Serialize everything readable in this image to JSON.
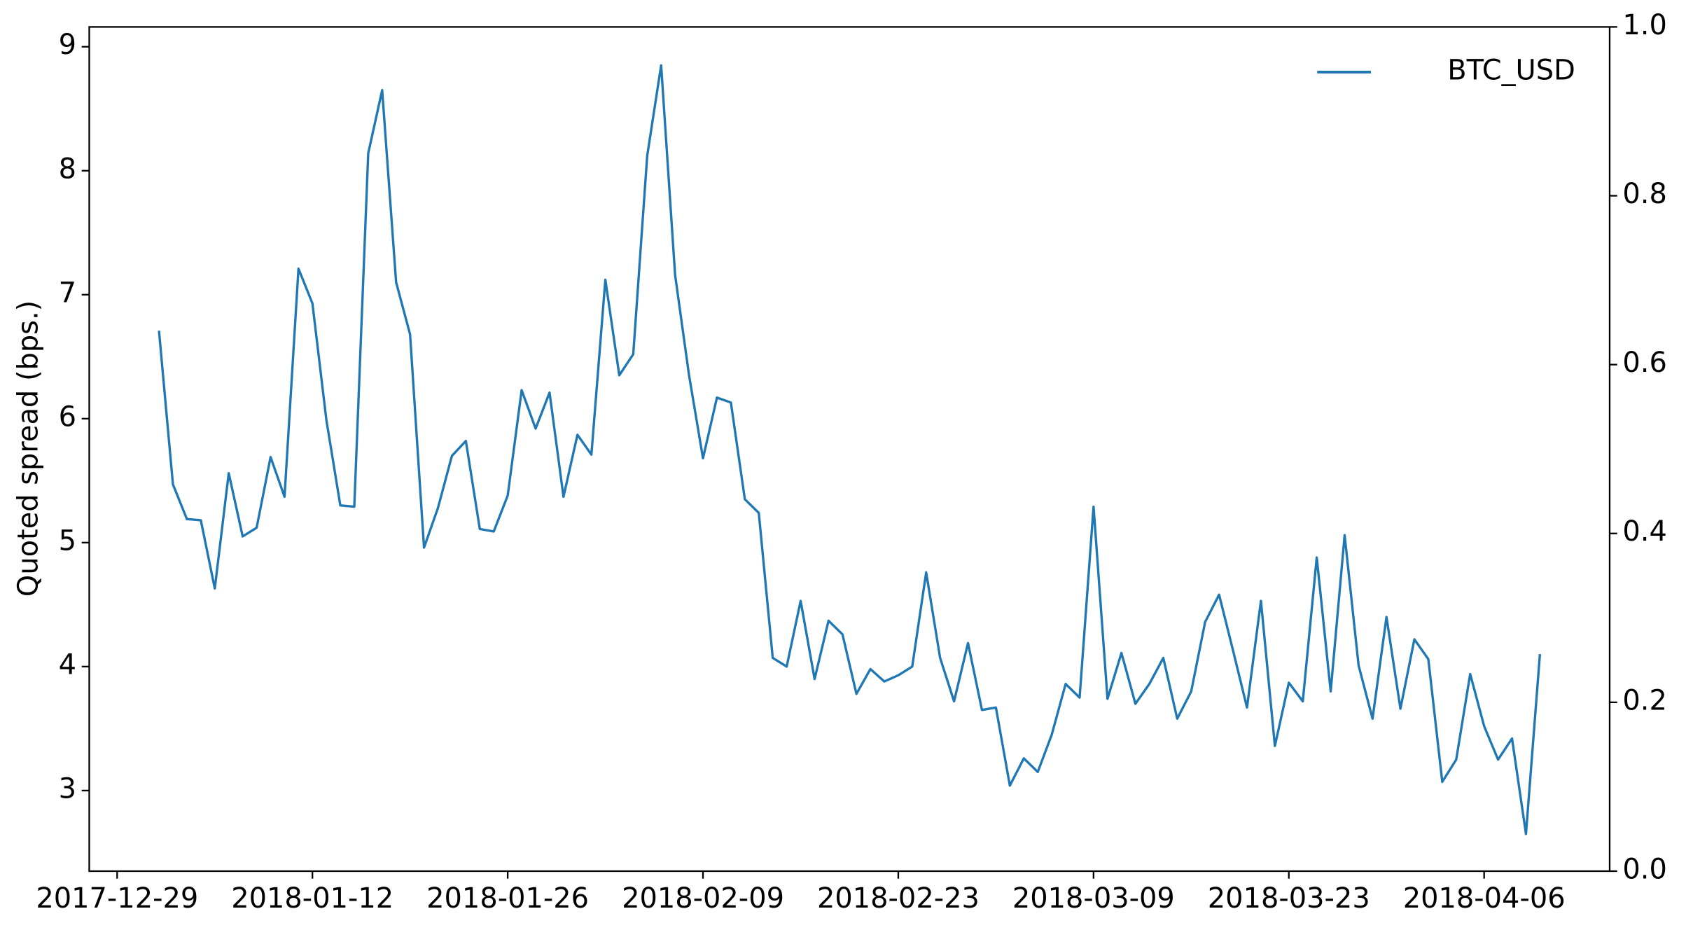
{
  "chart_data": {
    "type": "line",
    "ylabel": "Quoted spread (bps.)",
    "x": [
      "2018-01-01",
      "2018-01-02",
      "2018-01-03",
      "2018-01-04",
      "2018-01-05",
      "2018-01-06",
      "2018-01-07",
      "2018-01-08",
      "2018-01-09",
      "2018-01-10",
      "2018-01-11",
      "2018-01-12",
      "2018-01-13",
      "2018-01-14",
      "2018-01-15",
      "2018-01-16",
      "2018-01-17",
      "2018-01-18",
      "2018-01-19",
      "2018-01-20",
      "2018-01-21",
      "2018-01-22",
      "2018-01-23",
      "2018-01-24",
      "2018-01-25",
      "2018-01-26",
      "2018-01-27",
      "2018-01-28",
      "2018-01-29",
      "2018-01-30",
      "2018-01-31",
      "2018-02-01",
      "2018-02-02",
      "2018-02-03",
      "2018-02-04",
      "2018-02-05",
      "2018-02-06",
      "2018-02-07",
      "2018-02-08",
      "2018-02-09",
      "2018-02-10",
      "2018-02-11",
      "2018-02-12",
      "2018-02-13",
      "2018-02-14",
      "2018-02-15",
      "2018-02-16",
      "2018-02-17",
      "2018-02-18",
      "2018-02-19",
      "2018-02-20",
      "2018-02-21",
      "2018-02-22",
      "2018-02-23",
      "2018-02-24",
      "2018-02-25",
      "2018-02-26",
      "2018-02-27",
      "2018-02-28",
      "2018-03-01",
      "2018-03-02",
      "2018-03-03",
      "2018-03-04",
      "2018-03-05",
      "2018-03-06",
      "2018-03-07",
      "2018-03-08",
      "2018-03-09",
      "2018-03-10",
      "2018-03-11",
      "2018-03-12",
      "2018-03-13",
      "2018-03-14",
      "2018-03-15",
      "2018-03-16",
      "2018-03-17",
      "2018-03-18",
      "2018-03-19",
      "2018-03-20",
      "2018-03-21",
      "2018-03-22",
      "2018-03-23",
      "2018-03-24",
      "2018-03-25",
      "2018-03-26",
      "2018-03-27",
      "2018-03-28",
      "2018-03-29",
      "2018-03-30",
      "2018-03-31",
      "2018-04-01",
      "2018-04-02",
      "2018-04-03",
      "2018-04-04",
      "2018-04-05",
      "2018-04-06",
      "2018-04-07",
      "2018-04-08",
      "2018-04-09",
      "2018-04-10"
    ],
    "series": [
      {
        "name": "BTC_USD",
        "color": "#1f77b4",
        "values": [
          6.71,
          5.47,
          5.19,
          5.18,
          4.63,
          5.56,
          5.05,
          5.12,
          5.69,
          5.37,
          7.21,
          6.93,
          5.99,
          5.3,
          5.29,
          8.14,
          8.65,
          7.1,
          6.68,
          4.96,
          5.28,
          5.7,
          5.82,
          5.11,
          5.09,
          5.38,
          6.23,
          5.92,
          6.21,
          5.37,
          5.87,
          5.71,
          7.12,
          6.35,
          6.52,
          8.12,
          8.85,
          7.16,
          6.35,
          5.68,
          6.17,
          6.13,
          5.35,
          5.24,
          4.07,
          4.0,
          4.53,
          3.9,
          4.37,
          4.26,
          3.78,
          3.98,
          3.88,
          3.93,
          4.0,
          4.76,
          4.07,
          3.72,
          4.19,
          3.65,
          3.67,
          3.04,
          3.26,
          3.15,
          3.45,
          3.86,
          3.75,
          5.29,
          3.74,
          4.11,
          3.7,
          3.86,
          4.07,
          3.58,
          3.8,
          4.36,
          4.58,
          4.13,
          3.67,
          4.53,
          3.36,
          3.87,
          3.72,
          4.88,
          3.8,
          5.06,
          4.01,
          3.58,
          4.4,
          3.66,
          4.22,
          4.06,
          3.07,
          3.25,
          3.94,
          3.52,
          3.25,
          3.42,
          2.65,
          4.1
        ]
      }
    ],
    "xlim": [
      "2017-12-27",
      "2018-04-15"
    ],
    "xticks": [
      "2017-12-29",
      "2018-01-12",
      "2018-01-26",
      "2018-02-09",
      "2018-02-23",
      "2018-03-09",
      "2018-03-23",
      "2018-04-06"
    ],
    "ylim": [
      2.35,
      9.16
    ],
    "yticks": [
      3,
      4,
      5,
      6,
      7,
      8,
      9
    ],
    "y2lim": [
      0,
      1
    ],
    "y2ticks": [
      {
        "value": 0,
        "label": "0.0"
      },
      {
        "value": 0.2,
        "label": "0.2"
      },
      {
        "value": 0.4,
        "label": "0.4"
      },
      {
        "value": 0.6,
        "label": "0.6"
      },
      {
        "value": 0.8,
        "label": "0.8"
      },
      {
        "value": 1,
        "label": "1.0"
      }
    ],
    "legend": "upper right"
  }
}
